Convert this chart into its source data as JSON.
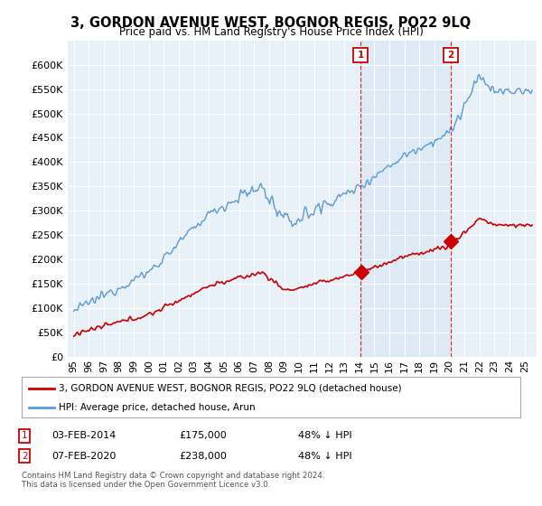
{
  "title": "3, GORDON AVENUE WEST, BOGNOR REGIS, PO22 9LQ",
  "subtitle": "Price paid vs. HM Land Registry's House Price Index (HPI)",
  "legend_line1": "3, GORDON AVENUE WEST, BOGNOR REGIS, PO22 9LQ (detached house)",
  "legend_line2": "HPI: Average price, detached house, Arun",
  "annotation1": {
    "label": "1",
    "date": "03-FEB-2014",
    "price": "£175,000",
    "pct": "48% ↓ HPI",
    "x": 2014.1
  },
  "annotation2": {
    "label": "2",
    "date": "07-FEB-2020",
    "price": "£238,000",
    "pct": "48% ↓ HPI",
    "x": 2020.1
  },
  "footnote": "Contains HM Land Registry data © Crown copyright and database right 2024.\nThis data is licensed under the Open Government Licence v3.0.",
  "line_color_red": "#cc0000",
  "line_color_blue": "#5b9bd5",
  "shade_color": "#dce9f5",
  "annotation_color": "#cc0000",
  "background_color": "#e8f0f8",
  "ylim": [
    0,
    650000
  ],
  "yticks": [
    0,
    50000,
    100000,
    150000,
    200000,
    250000,
    300000,
    350000,
    400000,
    450000,
    500000,
    550000,
    600000
  ],
  "xlabel_years": [
    "95",
    "96",
    "97",
    "98",
    "99",
    "00",
    "01",
    "02",
    "03",
    "04",
    "05",
    "06",
    "07",
    "08",
    "09",
    "10",
    "11",
    "12",
    "13",
    "14",
    "15",
    "16",
    "17",
    "18",
    "19",
    "20",
    "21",
    "22",
    "23",
    "24",
    "25"
  ],
  "xlabel_year_floats": [
    1995,
    1996,
    1997,
    1998,
    1999,
    2000,
    2001,
    2002,
    2003,
    2004,
    2005,
    2006,
    2007,
    2008,
    2009,
    2010,
    2011,
    2012,
    2013,
    2014,
    2015,
    2016,
    2017,
    2018,
    2019,
    2020,
    2021,
    2022,
    2023,
    2024,
    2025
  ]
}
